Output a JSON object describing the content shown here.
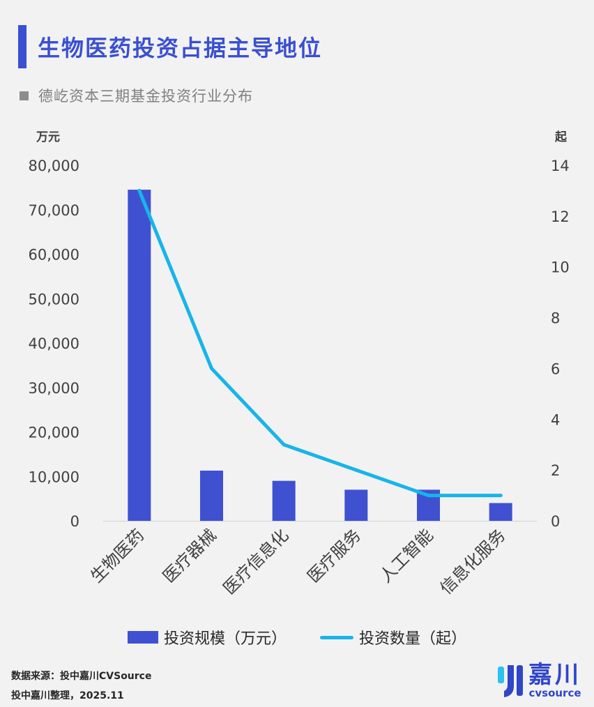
{
  "header": {
    "title": "生物医药投资占据主导地位",
    "subtitle": "德屹资本三期基金投资行业分布"
  },
  "chart_data": {
    "type": "bar",
    "title": "德屹资本三期基金投资行业分布",
    "categories": [
      "生物医药",
      "医疗器械",
      "医疗信息化",
      "医疗服务",
      "人工智能",
      "信息化服务"
    ],
    "series": [
      {
        "name": "投资规模（万元）",
        "type": "bar",
        "axis": "left",
        "color": "#3f51d0",
        "values": [
          74500,
          11300,
          9000,
          7000,
          7000,
          4000
        ]
      },
      {
        "name": "投资数量（起）",
        "type": "line",
        "axis": "right",
        "color": "#18b4ea",
        "values": [
          13,
          6,
          3,
          2,
          1,
          1
        ]
      }
    ],
    "y_left": {
      "unit": "万元",
      "min": 0,
      "max": 80000,
      "ticks": [
        "0",
        "10,000",
        "20,000",
        "30,000",
        "40,000",
        "50,000",
        "60,000",
        "70,000",
        "80,000"
      ]
    },
    "y_right": {
      "unit": "起",
      "min": 0,
      "max": 14,
      "ticks": [
        "0",
        "2",
        "4",
        "6",
        "8",
        "10",
        "12",
        "14"
      ]
    },
    "grid": false,
    "legend_position": "bottom"
  },
  "footer": {
    "source_line1": "数据来源：投中嘉川CVSource",
    "source_line2": "投中嘉川整理，2025.11",
    "logo_cn": "嘉川",
    "logo_en": "cvsource"
  }
}
